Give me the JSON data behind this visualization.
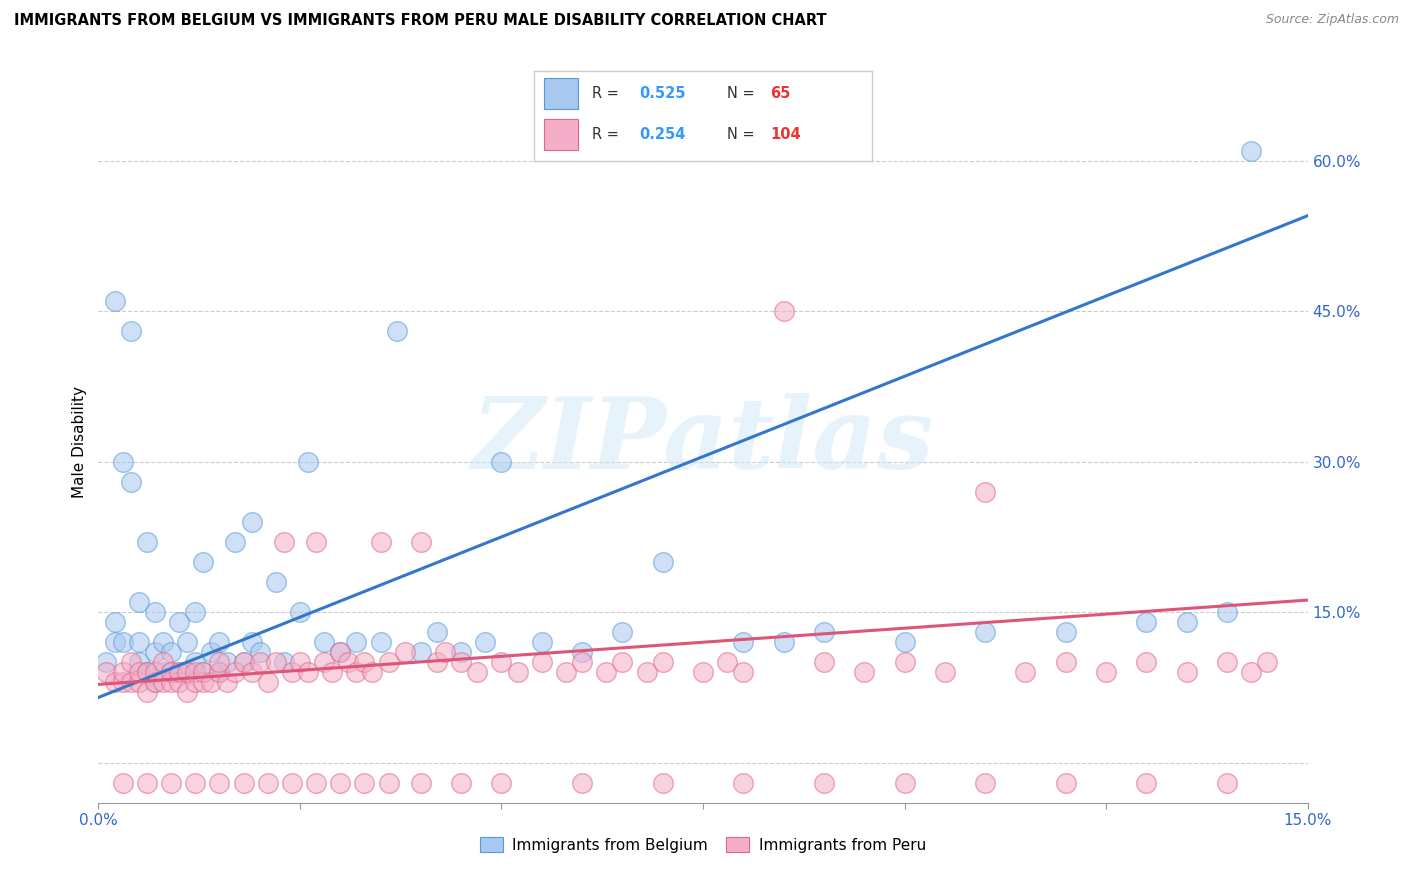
{
  "title": "IMMIGRANTS FROM BELGIUM VS IMMIGRANTS FROM PERU MALE DISABILITY CORRELATION CHART",
  "source": "Source: ZipAtlas.com",
  "ylabel": "Male Disability",
  "xlim": [
    0.0,
    0.15
  ],
  "ylim": [
    -0.04,
    0.68
  ],
  "xtick_vals": [
    0.0,
    0.025,
    0.05,
    0.075,
    0.1,
    0.125,
    0.15
  ],
  "xtick_labels": [
    "0.0%",
    "",
    "",
    "",
    "",
    "",
    "15.0%"
  ],
  "ytick_vals": [
    0.0,
    0.15,
    0.3,
    0.45,
    0.6
  ],
  "ytick_labels": [
    "",
    "15.0%",
    "30.0%",
    "45.0%",
    "60.0%"
  ],
  "belgium_R": 0.525,
  "belgium_N": 65,
  "peru_R": 0.254,
  "peru_N": 104,
  "blue_scatter_color": "#a8c8f0",
  "blue_edge_color": "#5599dd",
  "pink_scatter_color": "#f5aec8",
  "pink_edge_color": "#dd6688",
  "blue_line_color": "#3377cc",
  "pink_line_color": "#dd5577",
  "legend_R_blue": "#3399ff",
  "legend_N_red": "#ee3333",
  "grid_color": "#cccccc",
  "watermark": "ZIPatlas",
  "belgium_trend_x": [
    0.0,
    0.15
  ],
  "belgium_trend_y": [
    0.065,
    0.545
  ],
  "peru_trend_x": [
    0.0,
    0.15
  ],
  "peru_trend_y": [
    0.078,
    0.162
  ],
  "scatter_size": 200,
  "scatter_alpha": 0.55,
  "scatter_lw": 1.0,
  "belgium_x": [
    0.001,
    0.002,
    0.002,
    0.002,
    0.003,
    0.003,
    0.004,
    0.004,
    0.005,
    0.005,
    0.005,
    0.006,
    0.006,
    0.007,
    0.007,
    0.007,
    0.008,
    0.008,
    0.009,
    0.009,
    0.01,
    0.01,
    0.011,
    0.011,
    0.012,
    0.012,
    0.013,
    0.013,
    0.014,
    0.015,
    0.015,
    0.016,
    0.017,
    0.018,
    0.019,
    0.019,
    0.02,
    0.022,
    0.023,
    0.025,
    0.026,
    0.028,
    0.03,
    0.032,
    0.035,
    0.037,
    0.04,
    0.042,
    0.045,
    0.048,
    0.05,
    0.055,
    0.06,
    0.065,
    0.07,
    0.08,
    0.085,
    0.09,
    0.1,
    0.11,
    0.12,
    0.13,
    0.135,
    0.14,
    0.143
  ],
  "belgium_y": [
    0.1,
    0.12,
    0.14,
    0.46,
    0.12,
    0.3,
    0.28,
    0.43,
    0.1,
    0.12,
    0.16,
    0.09,
    0.22,
    0.08,
    0.11,
    0.15,
    0.09,
    0.12,
    0.09,
    0.11,
    0.09,
    0.14,
    0.09,
    0.12,
    0.1,
    0.15,
    0.09,
    0.2,
    0.11,
    0.09,
    0.12,
    0.1,
    0.22,
    0.1,
    0.12,
    0.24,
    0.11,
    0.18,
    0.1,
    0.15,
    0.3,
    0.12,
    0.11,
    0.12,
    0.12,
    0.43,
    0.11,
    0.13,
    0.11,
    0.12,
    0.3,
    0.12,
    0.11,
    0.13,
    0.2,
    0.12,
    0.12,
    0.13,
    0.12,
    0.13,
    0.13,
    0.14,
    0.14,
    0.15,
    0.61
  ],
  "peru_x": [
    0.001,
    0.002,
    0.003,
    0.003,
    0.004,
    0.004,
    0.005,
    0.005,
    0.006,
    0.006,
    0.007,
    0.007,
    0.008,
    0.008,
    0.009,
    0.009,
    0.01,
    0.01,
    0.011,
    0.011,
    0.012,
    0.012,
    0.013,
    0.013,
    0.014,
    0.015,
    0.015,
    0.016,
    0.017,
    0.018,
    0.019,
    0.02,
    0.021,
    0.022,
    0.023,
    0.024,
    0.025,
    0.026,
    0.027,
    0.028,
    0.029,
    0.03,
    0.031,
    0.032,
    0.033,
    0.034,
    0.035,
    0.036,
    0.038,
    0.04,
    0.042,
    0.043,
    0.045,
    0.047,
    0.05,
    0.052,
    0.055,
    0.058,
    0.06,
    0.063,
    0.065,
    0.068,
    0.07,
    0.075,
    0.078,
    0.08,
    0.085,
    0.09,
    0.095,
    0.1,
    0.105,
    0.11,
    0.115,
    0.12,
    0.125,
    0.13,
    0.135,
    0.14,
    0.143,
    0.145,
    0.003,
    0.006,
    0.009,
    0.012,
    0.015,
    0.018,
    0.021,
    0.024,
    0.027,
    0.03,
    0.033,
    0.036,
    0.04,
    0.045,
    0.05,
    0.06,
    0.07,
    0.08,
    0.09,
    0.1,
    0.11,
    0.12,
    0.13,
    0.14
  ],
  "peru_y": [
    0.09,
    0.08,
    0.08,
    0.09,
    0.08,
    0.1,
    0.08,
    0.09,
    0.07,
    0.09,
    0.08,
    0.09,
    0.08,
    0.1,
    0.08,
    0.09,
    0.08,
    0.09,
    0.07,
    0.09,
    0.08,
    0.09,
    0.08,
    0.09,
    0.08,
    0.09,
    0.1,
    0.08,
    0.09,
    0.1,
    0.09,
    0.1,
    0.08,
    0.1,
    0.22,
    0.09,
    0.1,
    0.09,
    0.22,
    0.1,
    0.09,
    0.11,
    0.1,
    0.09,
    0.1,
    0.09,
    0.22,
    0.1,
    0.11,
    0.22,
    0.1,
    0.11,
    0.1,
    0.09,
    0.1,
    0.09,
    0.1,
    0.09,
    0.1,
    0.09,
    0.1,
    0.09,
    0.1,
    0.09,
    0.1,
    0.09,
    0.45,
    0.1,
    0.09,
    0.1,
    0.09,
    0.27,
    0.09,
    0.1,
    0.09,
    0.1,
    0.09,
    0.1,
    0.09,
    0.1,
    -0.02,
    -0.02,
    -0.02,
    -0.02,
    -0.02,
    -0.02,
    -0.02,
    -0.02,
    -0.02,
    -0.02,
    -0.02,
    -0.02,
    -0.02,
    -0.02,
    -0.02,
    -0.02,
    -0.02,
    -0.02,
    -0.02,
    -0.02,
    -0.02,
    -0.02,
    -0.02,
    -0.02
  ]
}
